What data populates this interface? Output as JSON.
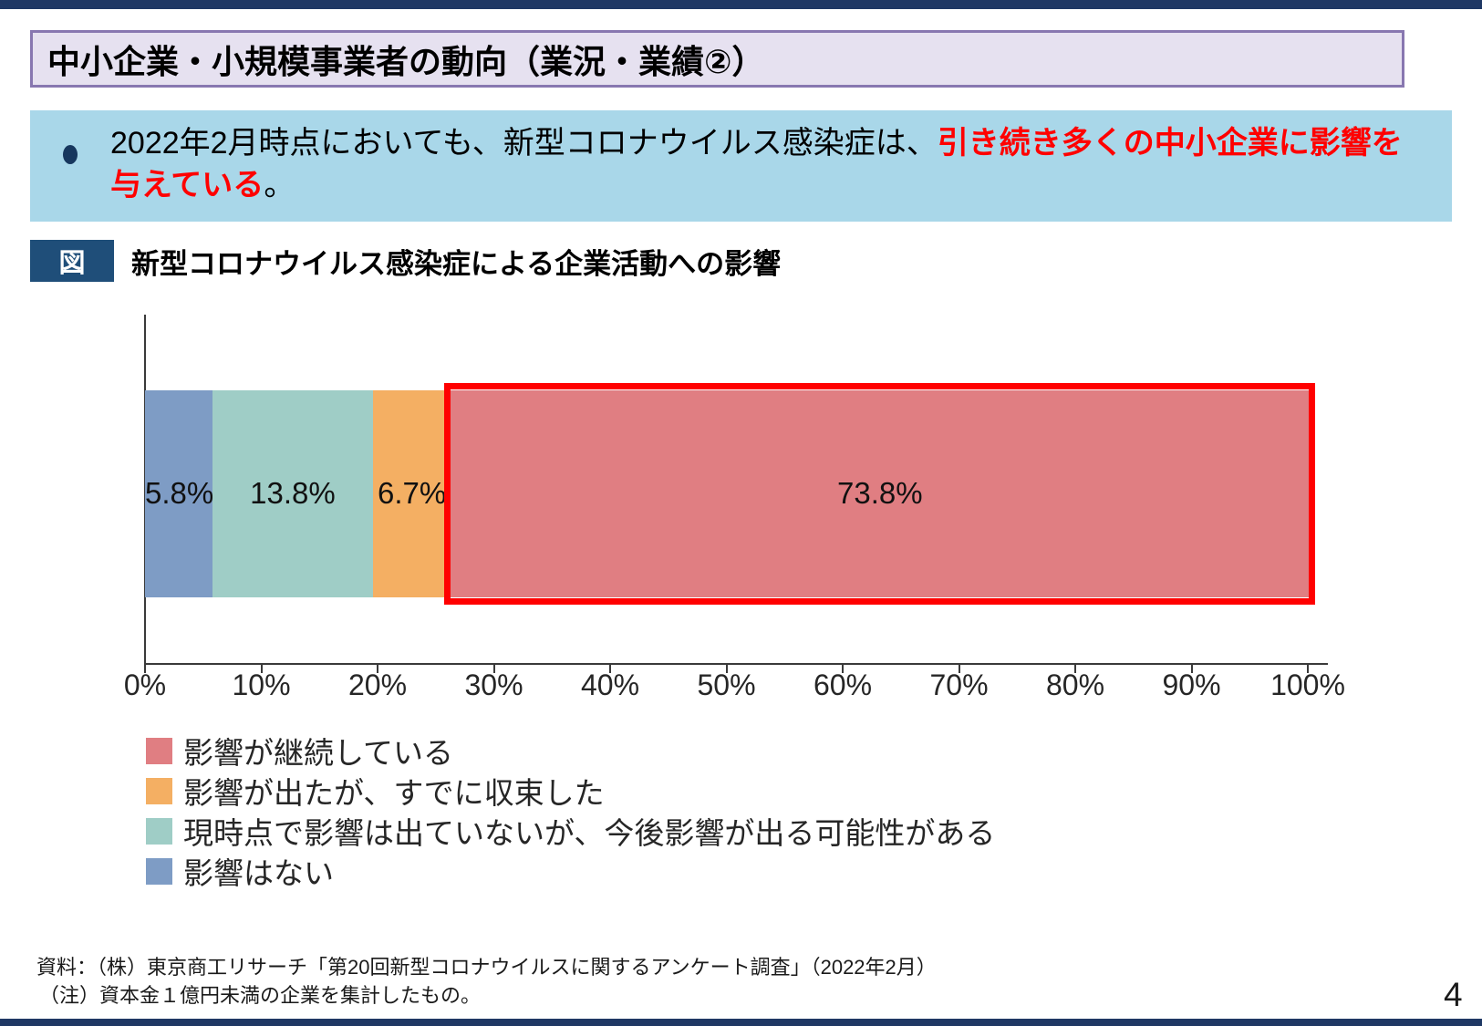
{
  "page": {
    "number": "4"
  },
  "header": {
    "title": "中小企業・小規模事業者の動向（業況・業績②）"
  },
  "callout": {
    "bullet_icon": "navy-dot",
    "text_black_1": "2022年2月時点においても、新型コロナウイルス感染症は、",
    "text_red_1": "引き続き多くの中小企業に影響を",
    "text_red_2": "与えている",
    "text_black_2": "。",
    "background_color": "#A9D7E9",
    "emphasis_color": "#FF0000"
  },
  "figure": {
    "badge": "図",
    "badge_color": "#1F4E79",
    "title": "新型コロナウイルス感染症による企業活動への影響"
  },
  "chart_data": {
    "type": "bar",
    "orientation": "horizontal-stacked",
    "title": "新型コロナウイルス感染症による企業活動への影響",
    "xlabel": "",
    "ylabel": "",
    "xlim": [
      0,
      100
    ],
    "x_ticks": [
      "0%",
      "10%",
      "20%",
      "30%",
      "40%",
      "50%",
      "60%",
      "70%",
      "80%",
      "90%",
      "100%"
    ],
    "grid": false,
    "segments": [
      {
        "name": "影響はない",
        "value": 5.8,
        "label": "5.8%",
        "color": "#7E9CC5",
        "highlight": false
      },
      {
        "name": "現時点で影響は出ていないが、今後影響が出る可能性がある",
        "value": 13.8,
        "label": "13.8%",
        "color": "#9FCDC6",
        "highlight": false
      },
      {
        "name": "影響が出たが、すでに収束した",
        "value": 6.7,
        "label": "6.7%",
        "color": "#F4AF63",
        "highlight": false
      },
      {
        "name": "影響が継続している",
        "value": 73.8,
        "label": "73.8%",
        "color": "#E07E82",
        "highlight": true
      }
    ],
    "highlight_border_color": "#FF0000",
    "legend_position": "bottom-left"
  },
  "legend": {
    "items": [
      {
        "label": "影響が継続している",
        "color": "#E07E82"
      },
      {
        "label": "影響が出たが、すでに収束した",
        "color": "#F4AF63"
      },
      {
        "label": "現時点で影響は出ていないが、今後影響が出る可能性がある",
        "color": "#9FCDC6"
      },
      {
        "label": "影響はない",
        "color": "#7E9CC5"
      }
    ]
  },
  "footnotes": {
    "source": "資料：（株）東京商工リサーチ「第20回新型コロナウイルスに関するアンケート調査」（2022年2月）",
    "note": "（注）資本金１億円未満の企業を集計したもの。"
  }
}
